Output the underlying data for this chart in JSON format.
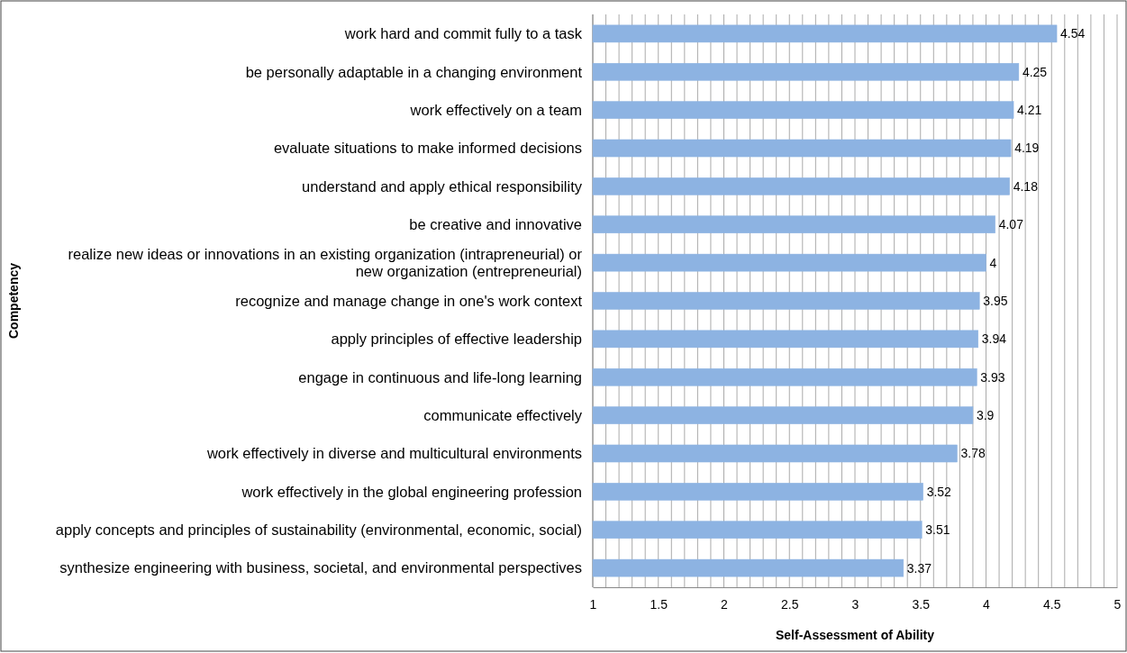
{
  "chart_data": {
    "type": "bar",
    "orientation": "horizontal",
    "xlabel": "Self-Assessment of Ability",
    "ylabel": "Competency",
    "categories": [
      "work hard and commit fully to a task",
      "be personally adaptable in a changing environment",
      "work effectively on a team",
      "evaluate situations to make informed decisions",
      "understand and apply ethical responsibility",
      "be creative and innovative",
      "realize new ideas or innovations in an existing organization (intrapreneurial) or new organization (entrepreneurial)",
      "recognize and manage change in one's work context",
      "apply principles of effective leadership",
      "engage in continuous and life-long learning",
      "communicate effectively",
      "work effectively in diverse and multicultural environments",
      "work effectively in the global engineering profession",
      "apply concepts and principles of sustainability (environmental, economic, social)",
      "synthesize engineering with business, societal, and environmental perspectives"
    ],
    "values": [
      4.54,
      4.25,
      4.21,
      4.19,
      4.18,
      4.07,
      4,
      3.95,
      3.94,
      3.93,
      3.9,
      3.78,
      3.52,
      3.51,
      3.37
    ],
    "color": "#8db3e2",
    "data_labels": true,
    "grid": "x",
    "xlim": [
      1,
      5
    ],
    "xticks": [
      1,
      {
        "value": 1.1,
        "label": null
      },
      {
        "value": 1.2,
        "label": null
      },
      {
        "value": 1.3,
        "label": null
      },
      {
        "value": 1.4,
        "label": null
      },
      1.5,
      {
        "value": 1.6,
        "label": null
      },
      {
        "value": 1.7,
        "label": null
      },
      {
        "value": 1.8,
        "label": null
      },
      {
        "value": 1.9,
        "label": null
      },
      2,
      {
        "value": 2.1,
        "label": null
      },
      {
        "value": 2.2,
        "label": null
      },
      {
        "value": 2.3,
        "label": null
      },
      {
        "value": 2.4,
        "label": null
      },
      2.5,
      {
        "value": 2.6,
        "label": null
      },
      {
        "value": 2.7,
        "label": null
      },
      {
        "value": 2.8,
        "label": null
      },
      {
        "value": 2.9,
        "label": null
      },
      3,
      {
        "value": 3.1,
        "label": null
      },
      {
        "value": 3.2,
        "label": null
      },
      {
        "value": 3.3,
        "label": null
      },
      {
        "value": 3.4,
        "label": null
      },
      3.5,
      {
        "value": 3.6,
        "label": null
      },
      {
        "value": 3.7,
        "label": null
      },
      {
        "value": 3.8,
        "label": null
      },
      {
        "value": 3.9,
        "label": null
      },
      4,
      {
        "value": 4.1,
        "label": null
      },
      {
        "value": 4.2,
        "label": null
      },
      {
        "value": 4.3,
        "label": null
      },
      {
        "value": 4.4,
        "label": null
      },
      4.5,
      {
        "value": 4.6,
        "label": null
      },
      {
        "value": 4.7,
        "label": null
      },
      {
        "value": 4.8,
        "label": null
      },
      {
        "value": 4.9,
        "label": null
      },
      5
    ]
  }
}
